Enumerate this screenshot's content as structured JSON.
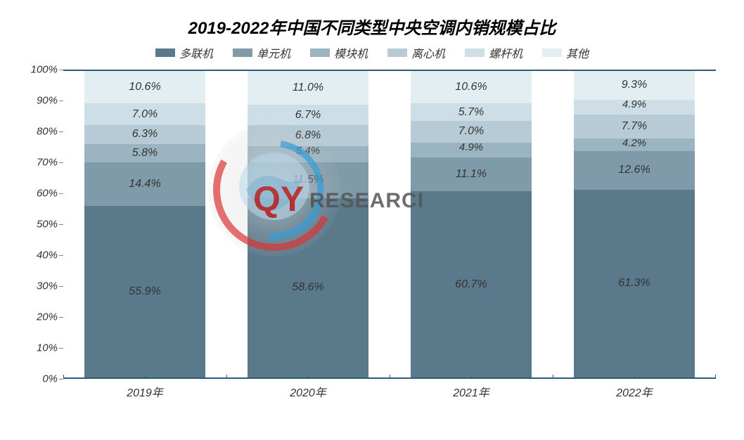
{
  "chart": {
    "type": "stacked-bar-100",
    "title": "2019-2022年中国不同类型中央空调内销规模占比",
    "title_fontsize": 24,
    "font_family": "Microsoft YaHei",
    "background_color": "#ffffff",
    "categories": [
      "2019年",
      "2020年",
      "2021年",
      "2022年"
    ],
    "series": [
      {
        "name": "多联机",
        "color": "#5a7a8c"
      },
      {
        "name": "单元机",
        "color": "#7f9baa"
      },
      {
        "name": "模块机",
        "color": "#9bb4c1"
      },
      {
        "name": "离心机",
        "color": "#b6cbd6"
      },
      {
        "name": "螺杆机",
        "color": "#cddee6"
      },
      {
        "name": "其他",
        "color": "#e3eef3"
      }
    ],
    "data": [
      [
        55.9,
        14.4,
        5.8,
        6.3,
        7.0,
        10.6
      ],
      [
        58.6,
        11.5,
        5.4,
        6.8,
        6.7,
        11.0
      ],
      [
        60.7,
        11.1,
        4.9,
        7.0,
        5.7,
        10.6
      ],
      [
        61.3,
        12.6,
        4.2,
        7.7,
        4.9,
        9.3
      ]
    ],
    "y_axis": {
      "min": 0,
      "max": 100,
      "step": 10,
      "suffix": "%",
      "label_fontsize": 15
    },
    "x_axis": {
      "label_fontsize": 16
    },
    "value_label_suffix": "%",
    "value_label_fontsize": 16,
    "bar_width_ratio": 0.74,
    "axis_line_color": "#2f5b7a"
  },
  "watermark": {
    "text_main": "QY",
    "text_sub": "RESEARCH",
    "circle_color_outer": "#d93a3a",
    "circle_color_inner": "#3aa0d9",
    "globe_color": "#7fb5d6"
  }
}
